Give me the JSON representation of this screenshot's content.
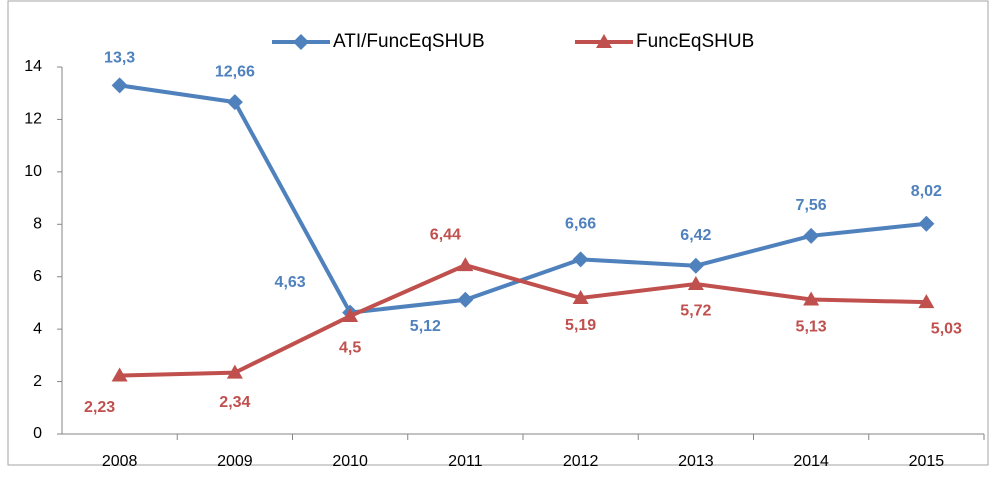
{
  "chart_data": {
    "type": "line",
    "categories": [
      "2008",
      "2009",
      "2010",
      "2011",
      "2012",
      "2013",
      "2014",
      "2015"
    ],
    "series": [
      {
        "name": "ATI/FuncEqSHUB",
        "color": "#4f81bd",
        "marker": "diamond",
        "values": [
          13.3,
          12.66,
          4.63,
          5.12,
          6.66,
          6.42,
          7.56,
          8.02
        ],
        "value_labels": [
          "13,3",
          "12,66",
          "4,63",
          "5,12",
          "6,66",
          "6,42",
          "7,56",
          "8,02"
        ]
      },
      {
        "name": "FuncEqSHUB",
        "color": "#c0504d",
        "marker": "triangle",
        "values": [
          2.23,
          2.34,
          4.5,
          6.44,
          5.19,
          5.72,
          5.13,
          5.03
        ],
        "value_labels": [
          "2,23",
          "2,34",
          "4,5",
          "6,44",
          "5,19",
          "5,72",
          "5,13",
          "5,03"
        ]
      }
    ],
    "ylim": [
      0,
      14
    ],
    "yticks": [
      0,
      2,
      4,
      6,
      8,
      10,
      12,
      14
    ],
    "grid": false,
    "legend": "top"
  }
}
